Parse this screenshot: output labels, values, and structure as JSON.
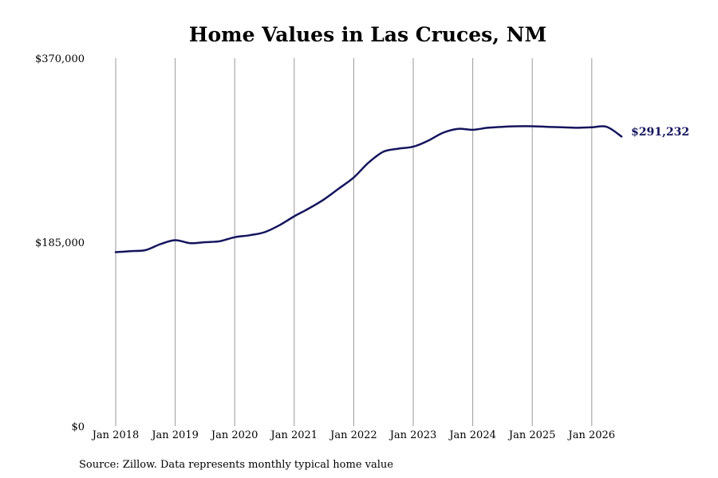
{
  "chart_data": {
    "type": "line",
    "title": "Home Values in Las Cruces, NM",
    "xlabel": "",
    "ylabel": "",
    "ylim": [
      0,
      370000
    ],
    "y_ticks": [
      "$0",
      "$185,000",
      "$370,000"
    ],
    "y_tick_values": [
      0,
      185000,
      370000
    ],
    "x_ticks": [
      "Jan 2018",
      "Jan 2019",
      "Jan 2020",
      "Jan 2021",
      "Jan 2022",
      "Jan 2023",
      "Jan 2024",
      "Jan 2025",
      "Jan 2026"
    ],
    "grid": "vertical",
    "line_color": "#14145e",
    "grid_color": "#999999",
    "end_label": "$291,232",
    "source": "Source: Zillow. Data represents monthly typical home value",
    "series": [
      {
        "x": [
          "2018-01",
          "2018-04",
          "2018-07",
          "2018-10",
          "2019-01",
          "2019-04",
          "2019-07",
          "2019-10",
          "2020-01",
          "2020-04",
          "2020-07",
          "2020-10",
          "2021-01",
          "2021-04",
          "2021-07",
          "2021-10",
          "2022-01",
          "2022-04",
          "2022-07",
          "2022-10",
          "2023-01",
          "2023-04",
          "2023-07",
          "2023-10",
          "2024-01",
          "2024-04",
          "2024-07",
          "2024-10",
          "2025-01",
          "2025-04",
          "2025-07",
          "2025-10",
          "2026-01",
          "2026-04",
          "2026-07"
        ],
        "values": [
          175000,
          176000,
          177000,
          183000,
          187000,
          184000,
          185000,
          186000,
          190000,
          192000,
          195000,
          202000,
          211000,
          219000,
          228000,
          239000,
          250000,
          265000,
          276000,
          279000,
          281000,
          287000,
          295000,
          299000,
          298000,
          300000,
          301000,
          301500,
          301500,
          301000,
          300500,
          300000,
          300500,
          301000,
          291232
        ]
      }
    ]
  }
}
